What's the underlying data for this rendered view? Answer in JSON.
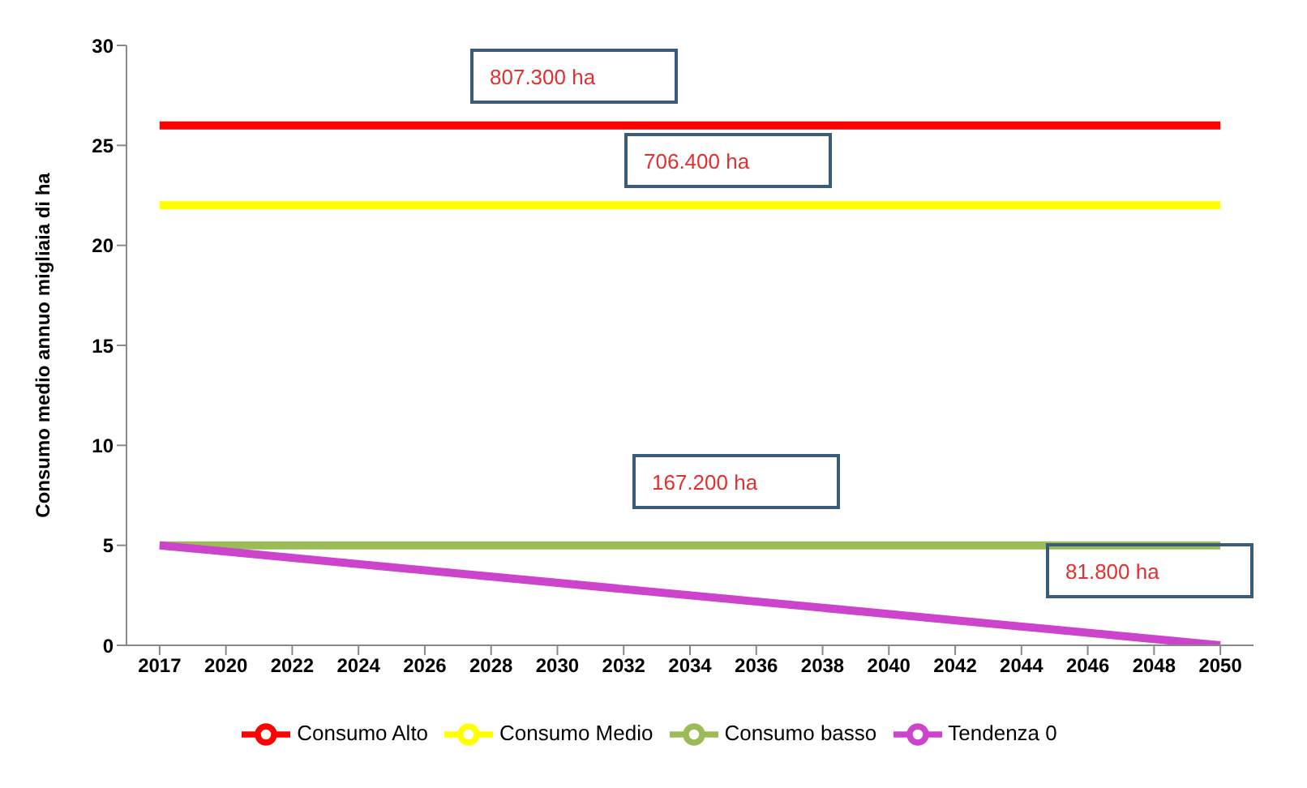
{
  "chart_data": {
    "type": "line",
    "ylabel": "Consumo medio annuo migliaia di ha",
    "categories": [
      "2017",
      "2020",
      "2022",
      "2024",
      "2026",
      "2028",
      "2030",
      "2032",
      "2034",
      "2036",
      "2038",
      "2040",
      "2042",
      "2044",
      "2046",
      "2048",
      "2050"
    ],
    "series": [
      {
        "name": "Consumo Alto",
        "color": "#ff0000",
        "values": [
          26,
          26,
          26,
          26,
          26,
          26,
          26,
          26,
          26,
          26,
          26,
          26,
          26,
          26,
          26,
          26,
          26
        ]
      },
      {
        "name": "Consumo Medio",
        "color": "#ffff00",
        "values": [
          22,
          22,
          22,
          22,
          22,
          22,
          22,
          22,
          22,
          22,
          22,
          22,
          22,
          22,
          22,
          22,
          22
        ]
      },
      {
        "name": "Consumo basso",
        "color": "#9bbb59",
        "values": [
          5,
          5,
          5,
          5,
          5,
          5,
          5,
          5,
          5,
          5,
          5,
          5,
          5,
          5,
          5,
          5,
          5
        ]
      },
      {
        "name": "Tendenza 0",
        "color": "#cc44cc",
        "values": [
          5,
          null,
          null,
          null,
          null,
          null,
          null,
          null,
          null,
          null,
          null,
          null,
          null,
          null,
          null,
          null,
          0
        ]
      }
    ],
    "ylim": [
      0,
      30
    ],
    "yticks": [
      0,
      5,
      10,
      15,
      20,
      25,
      30
    ],
    "annotations": [
      "807.300 ha",
      "706.400 ha",
      "167.200 ha",
      "81.800 ha"
    ],
    "grid": false,
    "legend": "bottom",
    "marker": "none",
    "line_style": "solid"
  }
}
